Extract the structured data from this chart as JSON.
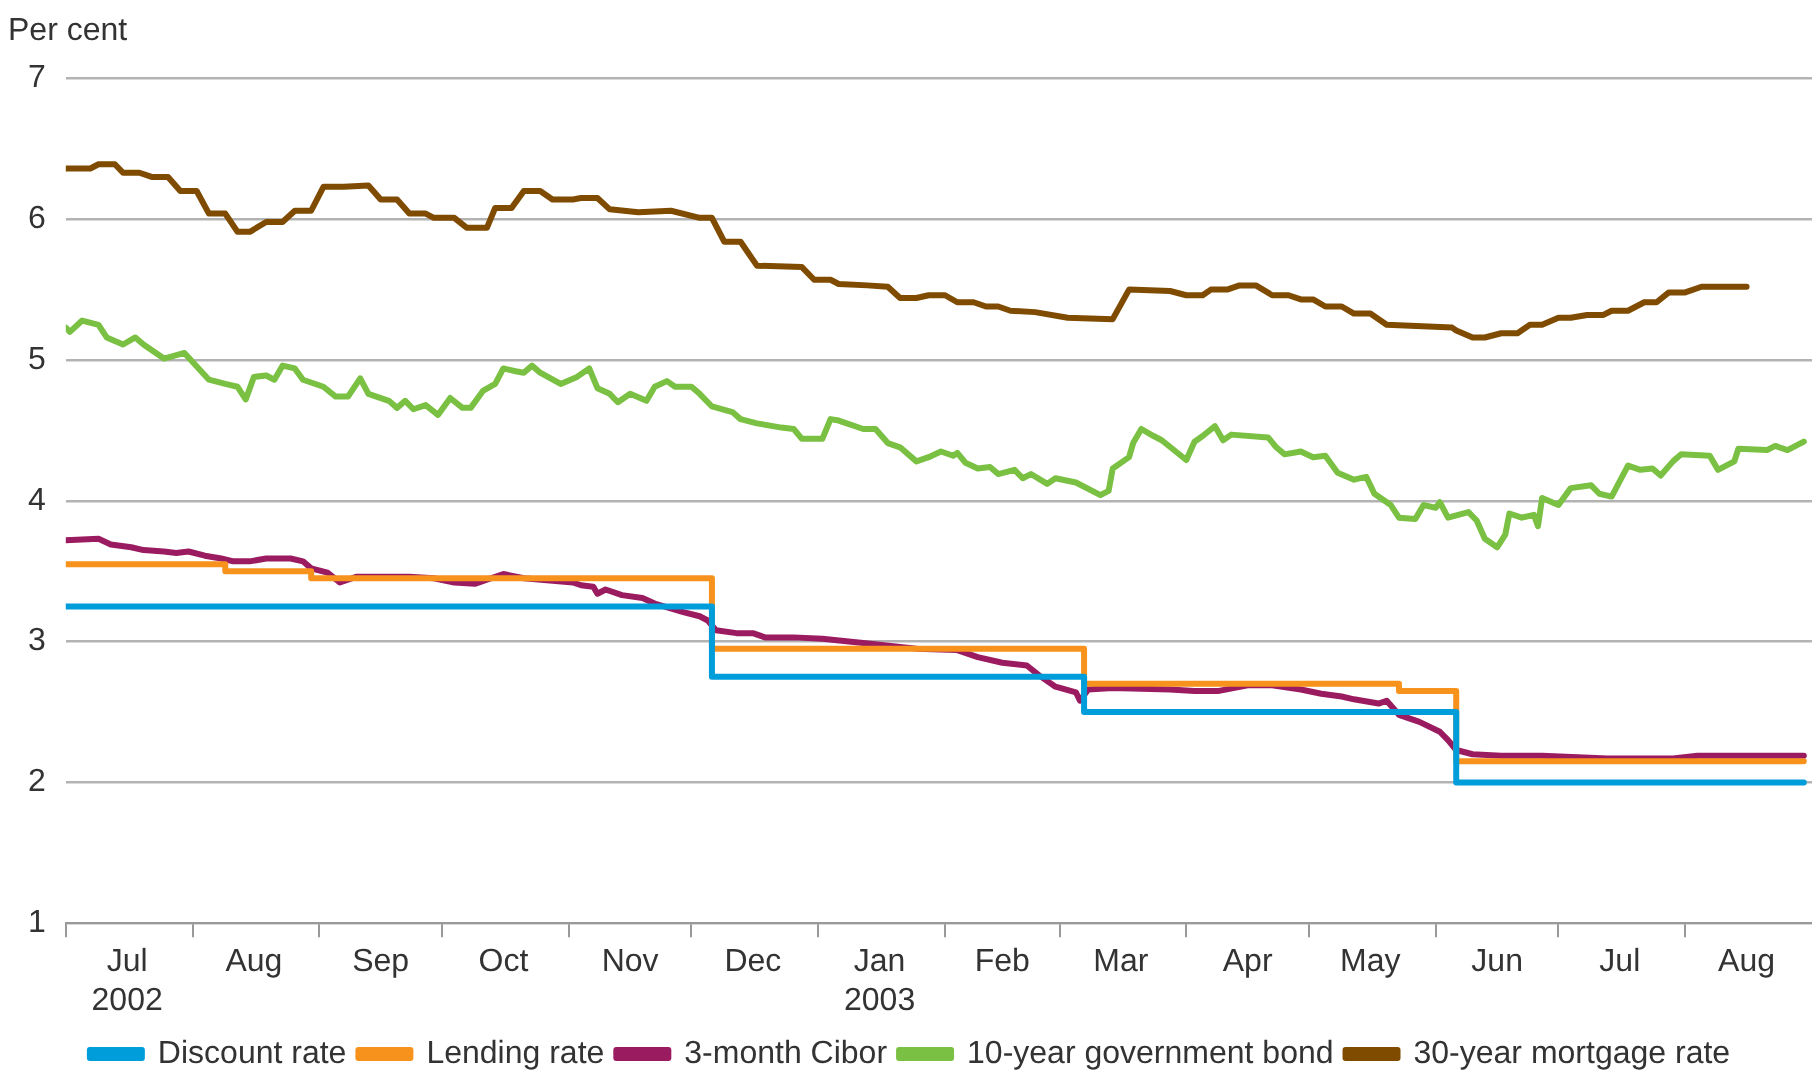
{
  "chart_data": {
    "type": "line",
    "ylabel": "Per cent",
    "ylim": [
      1,
      7
    ],
    "yticks": [
      1,
      2,
      3,
      4,
      5,
      6,
      7
    ],
    "xlim": [
      "2002-07-01",
      "2003-09-01"
    ],
    "xticks": [
      {
        "value": "2002-07-01",
        "label": null
      },
      {
        "value": "2002-07-16",
        "label": "Jul\n2002"
      },
      {
        "value": "2002-08-01",
        "label": null
      },
      {
        "value": "2002-08-16",
        "label": "Aug"
      },
      {
        "value": "2002-09-01",
        "label": null
      },
      {
        "value": "2002-09-16",
        "label": "Sep"
      },
      {
        "value": "2002-10-01",
        "label": null
      },
      {
        "value": "2002-10-16",
        "label": "Oct"
      },
      {
        "value": "2002-11-01",
        "label": null
      },
      {
        "value": "2002-11-16",
        "label": "Nov"
      },
      {
        "value": "2002-12-01",
        "label": null
      },
      {
        "value": "2002-12-16",
        "label": "Dec"
      },
      {
        "value": "2003-01-01",
        "label": null
      },
      {
        "value": "2003-01-16",
        "label": "Jan\n2003"
      },
      {
        "value": "2003-02-01",
        "label": null
      },
      {
        "value": "2003-02-15",
        "label": "Feb"
      },
      {
        "value": "2003-03-01",
        "label": null
      },
      {
        "value": "2003-03-16",
        "label": "Mar"
      },
      {
        "value": "2003-04-01",
        "label": null
      },
      {
        "value": "2003-04-16",
        "label": "Apr"
      },
      {
        "value": "2003-05-01",
        "label": null
      },
      {
        "value": "2003-05-16",
        "label": "May"
      },
      {
        "value": "2003-06-01",
        "label": null
      },
      {
        "value": "2003-06-16",
        "label": "Jun"
      },
      {
        "value": "2003-07-01",
        "label": null
      },
      {
        "value": "2003-07-16",
        "label": "Jul"
      },
      {
        "value": "2003-08-01",
        "label": null
      },
      {
        "value": "2003-08-16",
        "label": "Aug"
      }
    ],
    "grid": "y",
    "legend": "bottom",
    "line_style": "solid",
    "marker": "none",
    "series": [
      {
        "name": "Discount rate",
        "type": "step",
        "color": "#009ddb",
        "x": [
          "2002-07-01",
          "2002-12-06",
          "2003-03-07",
          "2003-06-06",
          "2003-08-30"
        ],
        "values": [
          3.25,
          2.75,
          2.5,
          2.0,
          2.0
        ]
      },
      {
        "name": "Lending rate",
        "type": "step",
        "color": "#f7931d",
        "x": [
          "2002-07-01",
          "2002-08-09",
          "2002-08-30",
          "2002-12-06",
          "2003-03-07",
          "2003-05-23",
          "2003-06-06",
          "2003-08-30"
        ],
        "values": [
          3.55,
          3.5,
          3.45,
          2.95,
          2.7,
          2.65,
          2.15,
          2.15
        ]
      },
      {
        "name": "3-month Cibor",
        "type": "line",
        "color": "#9b1b61",
        "x": [
          "2002-07-01",
          "2002-07-09",
          "2002-07-12",
          "2002-07-17",
          "2002-07-20",
          "2002-07-25",
          "2002-07-28",
          "2002-07-31",
          "2002-08-04",
          "2002-08-08",
          "2002-08-11",
          "2002-08-15",
          "2002-08-19",
          "2002-08-25",
          "2002-08-28",
          "2002-08-30",
          "2002-09-03",
          "2002-09-06",
          "2002-09-10",
          "2002-09-23",
          "2002-09-29",
          "2002-10-04",
          "2002-10-09",
          "2002-10-16",
          "2002-10-21",
          "2002-11-02",
          "2002-11-04",
          "2002-11-07",
          "2002-11-08",
          "2002-11-10",
          "2002-11-14",
          "2002-11-19",
          "2002-11-22",
          "2002-11-29",
          "2002-12-03",
          "2002-12-05",
          "2002-12-07",
          "2002-12-12",
          "2002-12-16",
          "2002-12-19",
          "2002-12-26",
          "2003-01-02",
          "2003-01-12",
          "2003-01-25",
          "2003-02-04",
          "2003-02-09",
          "2003-02-15",
          "2003-02-21",
          "2003-02-24",
          "2003-02-28",
          "2003-03-05",
          "2003-03-06",
          "2003-03-08",
          "2003-03-14",
          "2003-03-28",
          "2003-04-03",
          "2003-04-09",
          "2003-04-16",
          "2003-04-22",
          "2003-04-29",
          "2003-05-04",
          "2003-05-09",
          "2003-05-12",
          "2003-05-18",
          "2003-05-20",
          "2003-05-23",
          "2003-05-28",
          "2003-06-02",
          "2003-06-04",
          "2003-06-06",
          "2003-06-10",
          "2003-06-17",
          "2003-06-27",
          "2003-07-13",
          "2003-07-29",
          "2003-08-04",
          "2003-08-14",
          "2003-08-30"
        ],
        "values": [
          3.72,
          3.73,
          3.69,
          3.67,
          3.65,
          3.64,
          3.63,
          3.64,
          3.61,
          3.59,
          3.57,
          3.57,
          3.59,
          3.59,
          3.57,
          3.52,
          3.49,
          3.42,
          3.46,
          3.46,
          3.45,
          3.42,
          3.41,
          3.48,
          3.45,
          3.42,
          3.4,
          3.39,
          3.34,
          3.37,
          3.33,
          3.31,
          3.27,
          3.21,
          3.18,
          3.15,
          3.08,
          3.06,
          3.06,
          3.03,
          3.03,
          3.02,
          2.99,
          2.95,
          2.94,
          2.89,
          2.85,
          2.83,
          2.76,
          2.68,
          2.64,
          2.58,
          2.66,
          2.67,
          2.66,
          2.65,
          2.65,
          2.69,
          2.69,
          2.66,
          2.63,
          2.61,
          2.59,
          2.56,
          2.58,
          2.48,
          2.43,
          2.36,
          2.3,
          2.23,
          2.2,
          2.19,
          2.19,
          2.17,
          2.17,
          2.19,
          2.19,
          2.19
        ]
      },
      {
        "name": "10-year government bond",
        "type": "line",
        "color": "#7ac143",
        "x": [
          "2002-07-01",
          "2002-07-02",
          "2002-07-05",
          "2002-07-09",
          "2002-07-11",
          "2002-07-15",
          "2002-07-18",
          "2002-07-20",
          "2002-07-25",
          "2002-07-30",
          "2002-08-05",
          "2002-08-09",
          "2002-08-12",
          "2002-08-14",
          "2002-08-16",
          "2002-08-19",
          "2002-08-21",
          "2002-08-23",
          "2002-08-26",
          "2002-08-28",
          "2002-09-02",
          "2002-09-05",
          "2002-09-08",
          "2002-09-11",
          "2002-09-13",
          "2002-09-18",
          "2002-09-20",
          "2002-09-22",
          "2002-09-24",
          "2002-09-27",
          "2002-09-30",
          "2002-10-03",
          "2002-10-06",
          "2002-10-08",
          "2002-10-11",
          "2002-10-14",
          "2002-10-16",
          "2002-10-19",
          "2002-10-21",
          "2002-10-23",
          "2002-10-25",
          "2002-10-30",
          "2002-11-03",
          "2002-11-06",
          "2002-11-08",
          "2002-11-11",
          "2002-11-13",
          "2002-11-16",
          "2002-11-20",
          "2002-11-22",
          "2002-11-25",
          "2002-11-27",
          "2002-12-01",
          "2002-12-03",
          "2002-12-06",
          "2002-12-11",
          "2002-12-13",
          "2002-12-17",
          "2002-12-23",
          "2002-12-26",
          "2002-12-28",
          "2003-01-02",
          "2003-01-04",
          "2003-01-06",
          "2003-01-12",
          "2003-01-15",
          "2003-01-18",
          "2003-01-21",
          "2003-01-25",
          "2003-01-28",
          "2003-01-31",
          "2003-02-03",
          "2003-02-04",
          "2003-02-06",
          "2003-02-09",
          "2003-02-12",
          "2003-02-14",
          "2003-02-18",
          "2003-02-20",
          "2003-02-22",
          "2003-02-26",
          "2003-02-28",
          "2003-03-05",
          "2003-03-11",
          "2003-03-13",
          "2003-03-14",
          "2003-03-18",
          "2003-03-19",
          "2003-03-21",
          "2003-03-24",
          "2003-03-26",
          "2003-04-01",
          "2003-04-03",
          "2003-04-05",
          "2003-04-08",
          "2003-04-10",
          "2003-04-12",
          "2003-04-21",
          "2003-04-23",
          "2003-04-25",
          "2003-04-29",
          "2003-05-02",
          "2003-05-05",
          "2003-05-08",
          "2003-05-12",
          "2003-05-15",
          "2003-05-17",
          "2003-05-21",
          "2003-05-23",
          "2003-05-27",
          "2003-05-29",
          "2003-06-01",
          "2003-06-02",
          "2003-06-04",
          "2003-06-09",
          "2003-06-11",
          "2003-06-13",
          "2003-06-16",
          "2003-06-18",
          "2003-06-19",
          "2003-06-22",
          "2003-06-25",
          "2003-06-26",
          "2003-06-27",
          "2003-07-01",
          "2003-07-04",
          "2003-07-09",
          "2003-07-11",
          "2003-07-14",
          "2003-07-18",
          "2003-07-21",
          "2003-07-24",
          "2003-07-26",
          "2003-07-29",
          "2003-07-31",
          "2003-08-07",
          "2003-08-09",
          "2003-08-13",
          "2003-08-14",
          "2003-08-21",
          "2003-08-23",
          "2003-08-26",
          "2003-08-30"
        ],
        "values": [
          5.23,
          5.2,
          5.28,
          5.25,
          5.16,
          5.11,
          5.16,
          5.11,
          5.01,
          5.05,
          4.86,
          4.83,
          4.81,
          4.72,
          4.88,
          4.89,
          4.86,
          4.96,
          4.94,
          4.86,
          4.81,
          4.74,
          4.74,
          4.87,
          4.76,
          4.71,
          4.66,
          4.71,
          4.65,
          4.68,
          4.61,
          4.73,
          4.66,
          4.66,
          4.78,
          4.83,
          4.94,
          4.92,
          4.91,
          4.96,
          4.91,
          4.83,
          4.88,
          4.94,
          4.8,
          4.76,
          4.7,
          4.76,
          4.71,
          4.81,
          4.85,
          4.81,
          4.81,
          4.76,
          4.67,
          4.63,
          4.58,
          4.55,
          4.52,
          4.51,
          4.44,
          4.44,
          4.58,
          4.57,
          4.51,
          4.51,
          4.41,
          4.38,
          4.28,
          4.31,
          4.35,
          4.32,
          4.34,
          4.27,
          4.23,
          4.24,
          4.19,
          4.22,
          4.16,
          4.19,
          4.12,
          4.16,
          4.13,
          4.04,
          4.07,
          4.23,
          4.31,
          4.41,
          4.51,
          4.46,
          4.43,
          4.29,
          4.42,
          4.46,
          4.53,
          4.43,
          4.47,
          4.45,
          4.38,
          4.33,
          4.35,
          4.31,
          4.32,
          4.2,
          4.15,
          4.17,
          4.05,
          3.97,
          3.88,
          3.87,
          3.97,
          3.95,
          3.99,
          3.88,
          3.92,
          3.86,
          3.73,
          3.67,
          3.76,
          3.91,
          3.88,
          3.9,
          3.82,
          4.02,
          3.97,
          4.09,
          4.11,
          4.05,
          4.03,
          4.25,
          4.22,
          4.23,
          4.18,
          4.28,
          4.33,
          4.32,
          4.22,
          4.28,
          4.37,
          4.36,
          4.39,
          4.36,
          4.42
        ]
      },
      {
        "name": "30-year mortgage rate",
        "type": "line",
        "color": "#7f4b00",
        "x": [
          "2002-07-01",
          "2002-07-07",
          "2002-07-09",
          "2002-07-13",
          "2002-07-15",
          "2002-07-19",
          "2002-07-22",
          "2002-07-26",
          "2002-07-29",
          "2002-08-02",
          "2002-08-05",
          "2002-08-09",
          "2002-08-12",
          "2002-08-15",
          "2002-08-19",
          "2002-08-23",
          "2002-08-26",
          "2002-08-30",
          "2002-09-02",
          "2002-09-07",
          "2002-09-13",
          "2002-09-16",
          "2002-09-20",
          "2002-09-23",
          "2002-09-27",
          "2002-09-29",
          "2002-10-04",
          "2002-10-07",
          "2002-10-12",
          "2002-10-14",
          "2002-10-18",
          "2002-10-21",
          "2002-10-25",
          "2002-10-28",
          "2002-11-02",
          "2002-11-04",
          "2002-11-08",
          "2002-11-11",
          "2002-11-18",
          "2002-11-26",
          "2002-12-03",
          "2002-12-06",
          "2002-12-09",
          "2002-12-13",
          "2002-12-17",
          "2002-12-28",
          "2002-12-31",
          "2003-01-04",
          "2003-01-06",
          "2003-01-13",
          "2003-01-18",
          "2003-01-21",
          "2003-01-25",
          "2003-01-28",
          "2003-02-01",
          "2003-02-04",
          "2003-02-08",
          "2003-02-11",
          "2003-02-14",
          "2003-02-17",
          "2003-02-23",
          "2003-03-03",
          "2003-03-14",
          "2003-03-18",
          "2003-03-28",
          "2003-04-01",
          "2003-04-05",
          "2003-04-07",
          "2003-04-11",
          "2003-04-14",
          "2003-04-18",
          "2003-04-22",
          "2003-04-26",
          "2003-04-29",
          "2003-05-02",
          "2003-05-05",
          "2003-05-09",
          "2003-05-12",
          "2003-05-16",
          "2003-05-20",
          "2003-06-05",
          "2003-06-06",
          "2003-06-10",
          "2003-06-13",
          "2003-06-17",
          "2003-06-21",
          "2003-06-24",
          "2003-06-27",
          "2003-07-01",
          "2003-07-04",
          "2003-07-08",
          "2003-07-12",
          "2003-07-14",
          "2003-07-18",
          "2003-07-22",
          "2003-07-25",
          "2003-07-28",
          "2003-08-01",
          "2003-08-05",
          "2003-08-16"
        ],
        "values": [
          6.36,
          6.36,
          6.39,
          6.39,
          6.33,
          6.33,
          6.3,
          6.3,
          6.2,
          6.2,
          6.04,
          6.04,
          5.91,
          5.91,
          5.98,
          5.98,
          6.06,
          6.06,
          6.23,
          6.23,
          6.24,
          6.14,
          6.14,
          6.04,
          6.04,
          6.01,
          6.01,
          5.94,
          5.94,
          6.08,
          6.08,
          6.2,
          6.2,
          6.14,
          6.14,
          6.15,
          6.15,
          6.07,
          6.05,
          6.06,
          6.01,
          6.01,
          5.84,
          5.84,
          5.67,
          5.66,
          5.57,
          5.57,
          5.54,
          5.53,
          5.52,
          5.44,
          5.44,
          5.46,
          5.46,
          5.41,
          5.41,
          5.38,
          5.38,
          5.35,
          5.34,
          5.3,
          5.29,
          5.5,
          5.49,
          5.46,
          5.46,
          5.5,
          5.5,
          5.53,
          5.53,
          5.46,
          5.46,
          5.43,
          5.43,
          5.38,
          5.38,
          5.33,
          5.33,
          5.25,
          5.23,
          5.21,
          5.16,
          5.16,
          5.19,
          5.19,
          5.25,
          5.25,
          5.3,
          5.3,
          5.32,
          5.32,
          5.35,
          5.35,
          5.41,
          5.41,
          5.48,
          5.48,
          5.52,
          5.52
        ]
      }
    ]
  }
}
